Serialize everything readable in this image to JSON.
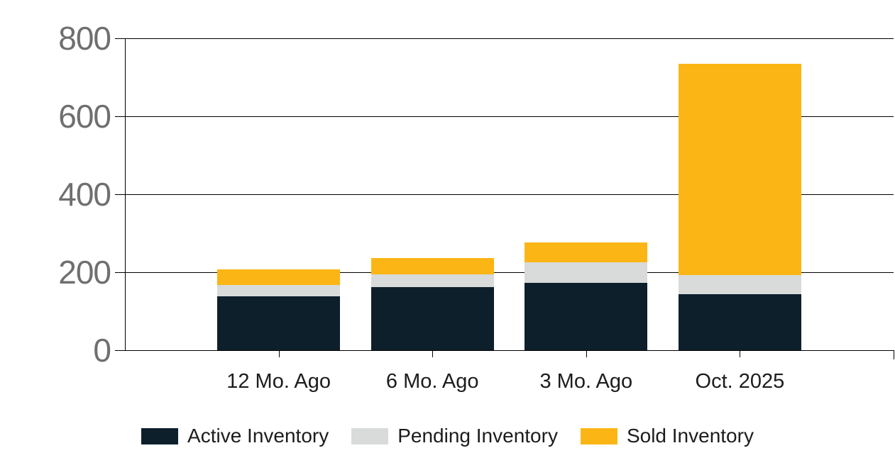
{
  "chart_data": {
    "type": "bar",
    "stacked": true,
    "title": "",
    "xlabel": "",
    "ylabel": "",
    "categories": [
      "12 Mo. Ago",
      "6 Mo. Ago",
      "3 Mo. Ago",
      "Oct. 2025"
    ],
    "series": [
      {
        "name": "Active Inventory",
        "color": "#0D1F2B",
        "values": [
          139,
          161,
          173,
          144
        ]
      },
      {
        "name": "Pending Inventory",
        "color": "#D8DBD9",
        "values": [
          29,
          33,
          52,
          48
        ]
      },
      {
        "name": "Sold Inventory",
        "color": "#FBB615",
        "values": [
          39,
          43,
          51,
          543
        ]
      }
    ],
    "totals": [
      207,
      237,
      276,
      735
    ],
    "ylim": [
      0,
      800
    ],
    "yticks": [
      0,
      200,
      400,
      600,
      800
    ],
    "ytick_labels": [
      "0",
      "200",
      "400",
      "600",
      "800"
    ],
    "grid": true,
    "legend_position": "bottom",
    "bar_width_fraction": 0.16
  },
  "colors": {
    "background": "#FFFFFF",
    "gridline": "#000000",
    "axis_tick_label": "#6F6F6F",
    "category_label": "#1C1C1C",
    "legend_text": "#1C1C1C"
  }
}
